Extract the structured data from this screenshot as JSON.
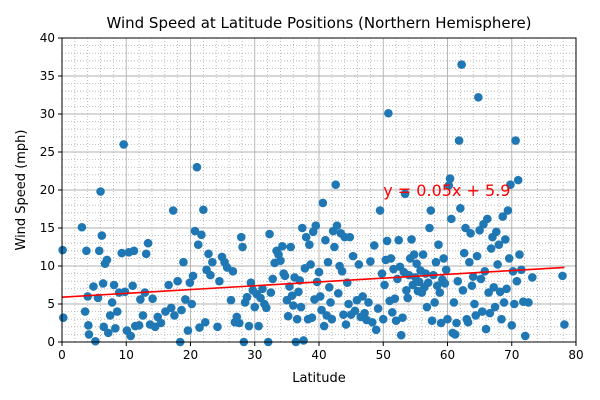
{
  "colors": {
    "point": "#1f77b4",
    "regression": "#ff0000",
    "major_grid": "#b0b0b0",
    "minor_grid": "#b0b0b0",
    "axis": "#000000"
  },
  "chart_data": {
    "type": "scatter",
    "title": "Wind Speed at Latitude Positions (Northern Hemisphere)",
    "xlabel": "Latitude",
    "ylabel": "Wind Speed (mph)",
    "xlim": [
      0,
      80
    ],
    "ylim": [
      0,
      40
    ],
    "xticks": [
      0,
      10,
      20,
      30,
      40,
      50,
      60,
      70,
      80
    ],
    "yticks": [
      0,
      5,
      10,
      15,
      20,
      25,
      30,
      35,
      40
    ],
    "grid": "major solid, minor dotted",
    "regression": {
      "slope": 0.05,
      "intercept": 5.9,
      "label": "y = 0.05x + 5.9",
      "x_range": [
        0,
        78.2
      ]
    },
    "points": [
      [
        0.1,
        12.1
      ],
      [
        0.2,
        3.2
      ],
      [
        3.1,
        15.1
      ],
      [
        3.8,
        12.0
      ],
      [
        4.1,
        2.2
      ],
      [
        4.0,
        6.0
      ],
      [
        3.6,
        4.0
      ],
      [
        4.2,
        1.0
      ],
      [
        4.9,
        7.3
      ],
      [
        5.2,
        0.1
      ],
      [
        5.6,
        5.8
      ],
      [
        5.8,
        12.0
      ],
      [
        6.0,
        19.8
      ],
      [
        6.2,
        14.0
      ],
      [
        6.4,
        7.7
      ],
      [
        6.5,
        2.0
      ],
      [
        6.7,
        10.3
      ],
      [
        7.0,
        10.8
      ],
      [
        7.2,
        1.2
      ],
      [
        7.5,
        3.5
      ],
      [
        7.8,
        5.2
      ],
      [
        8.1,
        7.5
      ],
      [
        8.3,
        1.8
      ],
      [
        8.6,
        4.0
      ],
      [
        8.9,
        6.5
      ],
      [
        9.3,
        11.7
      ],
      [
        9.6,
        26.0
      ],
      [
        9.8,
        6.6
      ],
      [
        10.1,
        1.5
      ],
      [
        10.4,
        11.8
      ],
      [
        10.7,
        0.8
      ],
      [
        11.0,
        7.4
      ],
      [
        11.2,
        12.0
      ],
      [
        11.4,
        2.1
      ],
      [
        12.0,
        2.2
      ],
      [
        12.2,
        5.6
      ],
      [
        12.6,
        3.5
      ],
      [
        12.9,
        6.5
      ],
      [
        13.1,
        11.6
      ],
      [
        13.4,
        13.0
      ],
      [
        13.7,
        2.3
      ],
      [
        14.1,
        5.7
      ],
      [
        14.5,
        2.0
      ],
      [
        14.9,
        3.3
      ],
      [
        15.4,
        2.5
      ],
      [
        16.1,
        4.0
      ],
      [
        16.6,
        7.5
      ],
      [
        17.0,
        4.5
      ],
      [
        17.3,
        17.3
      ],
      [
        17.5,
        3.5
      ],
      [
        18.0,
        8.0
      ],
      [
        18.4,
        0.0
      ],
      [
        18.6,
        4.2
      ],
      [
        18.9,
        10.5
      ],
      [
        19.2,
        5.6
      ],
      [
        19.6,
        1.5
      ],
      [
        19.9,
        7.8
      ],
      [
        20.2,
        5.0
      ],
      [
        20.4,
        8.7
      ],
      [
        20.7,
        14.6
      ],
      [
        21.0,
        23.0
      ],
      [
        21.2,
        12.8
      ],
      [
        21.4,
        1.9
      ],
      [
        21.7,
        14.1
      ],
      [
        22.0,
        17.4
      ],
      [
        22.3,
        2.6
      ],
      [
        22.5,
        9.5
      ],
      [
        22.8,
        11.6
      ],
      [
        23.1,
        8.8
      ],
      [
        23.4,
        10.5
      ],
      [
        24.2,
        2.0
      ],
      [
        24.5,
        8.0
      ],
      [
        24.9,
        11.2
      ],
      [
        25.3,
        10.5
      ],
      [
        25.7,
        9.8
      ],
      [
        26.3,
        5.5
      ],
      [
        26.6,
        9.3
      ],
      [
        26.9,
        2.6
      ],
      [
        27.2,
        3.3
      ],
      [
        27.6,
        2.5
      ],
      [
        27.9,
        13.8
      ],
      [
        28.1,
        12.5
      ],
      [
        28.3,
        0.0
      ],
      [
        28.5,
        5.2
      ],
      [
        28.8,
        5.9
      ],
      [
        29.1,
        2.1
      ],
      [
        29.4,
        7.8
      ],
      [
        29.7,
        6.8
      ],
      [
        30.0,
        4.6
      ],
      [
        30.3,
        6.3
      ],
      [
        30.6,
        2.1
      ],
      [
        30.9,
        5.8
      ],
      [
        31.2,
        7.0
      ],
      [
        31.5,
        5.0
      ],
      [
        31.8,
        4.5
      ],
      [
        32.1,
        0.0
      ],
      [
        32.3,
        14.2
      ],
      [
        32.5,
        6.5
      ],
      [
        32.8,
        8.3
      ],
      [
        33.1,
        10.4
      ],
      [
        33.4,
        12.0
      ],
      [
        33.7,
        11.5
      ],
      [
        34.0,
        10.7
      ],
      [
        34.3,
        12.6
      ],
      [
        34.5,
        9.0
      ],
      [
        34.7,
        8.7
      ],
      [
        35.0,
        5.5
      ],
      [
        35.2,
        3.4
      ],
      [
        35.4,
        7.3
      ],
      [
        35.6,
        12.5
      ],
      [
        35.8,
        6.1
      ],
      [
        36.0,
        4.8
      ],
      [
        36.2,
        8.5
      ],
      [
        36.4,
        0.0
      ],
      [
        36.6,
        3.0
      ],
      [
        36.8,
        6.6
      ],
      [
        37.0,
        8.1
      ],
      [
        37.2,
        4.6
      ],
      [
        37.4,
        15.0
      ],
      [
        37.6,
        0.2
      ],
      [
        37.8,
        9.7
      ],
      [
        38.0,
        13.8
      ],
      [
        38.3,
        3.0
      ],
      [
        38.5,
        12.8
      ],
      [
        38.7,
        10.2
      ],
      [
        38.9,
        3.2
      ],
      [
        39.1,
        14.5
      ],
      [
        39.3,
        5.6
      ],
      [
        39.5,
        15.3
      ],
      [
        39.7,
        7.9
      ],
      [
        40.0,
        9.2
      ],
      [
        40.2,
        6.0
      ],
      [
        40.4,
        4.2
      ],
      [
        40.6,
        18.3
      ],
      [
        40.8,
        2.1
      ],
      [
        41.0,
        13.4
      ],
      [
        41.2,
        3.5
      ],
      [
        41.4,
        10.5
      ],
      [
        41.6,
        7.2
      ],
      [
        41.8,
        5.2
      ],
      [
        42.0,
        3.0
      ],
      [
        42.2,
        14.6
      ],
      [
        42.4,
        12.5
      ],
      [
        42.6,
        20.7
      ],
      [
        42.8,
        15.3
      ],
      [
        43.0,
        6.4
      ],
      [
        43.2,
        10.0
      ],
      [
        43.4,
        14.3
      ],
      [
        43.6,
        9.3
      ],
      [
        43.8,
        3.6
      ],
      [
        44.0,
        13.8
      ],
      [
        44.2,
        2.3
      ],
      [
        44.4,
        7.8
      ],
      [
        44.6,
        5.0
      ],
      [
        44.8,
        13.8
      ],
      [
        45.0,
        3.6
      ],
      [
        45.3,
        11.3
      ],
      [
        45.6,
        4.1
      ],
      [
        45.9,
        5.5
      ],
      [
        46.2,
        10.2
      ],
      [
        46.5,
        3.3
      ],
      [
        46.8,
        6.0
      ],
      [
        47.1,
        3.8
      ],
      [
        47.4,
        2.9
      ],
      [
        47.7,
        5.2
      ],
      [
        48.0,
        10.6
      ],
      [
        48.3,
        2.6
      ],
      [
        48.6,
        12.7
      ],
      [
        48.9,
        1.6
      ],
      [
        49.2,
        4.4
      ],
      [
        49.5,
        17.3
      ],
      [
        49.8,
        9.0
      ],
      [
        50.0,
        3.0
      ],
      [
        50.2,
        7.5
      ],
      [
        50.4,
        10.8
      ],
      [
        50.6,
        13.3
      ],
      [
        50.8,
        30.1
      ],
      [
        51.0,
        5.4
      ],
      [
        51.2,
        11.0
      ],
      [
        51.4,
        3.9
      ],
      [
        51.6,
        9.6
      ],
      [
        51.8,
        5.7
      ],
      [
        52.0,
        2.8
      ],
      [
        52.2,
        8.3
      ],
      [
        52.4,
        13.4
      ],
      [
        52.6,
        9.9
      ],
      [
        52.8,
        0.9
      ],
      [
        53.0,
        3.2
      ],
      [
        53.2,
        9.2
      ],
      [
        53.4,
        19.5
      ],
      [
        53.6,
        6.8
      ],
      [
        53.8,
        5.8
      ],
      [
        54.0,
        8.8
      ],
      [
        54.2,
        11.0
      ],
      [
        54.4,
        13.5
      ],
      [
        54.6,
        7.5
      ],
      [
        54.8,
        11.5
      ],
      [
        55.0,
        8.5
      ],
      [
        55.2,
        10.3
      ],
      [
        55.4,
        6.7
      ],
      [
        55.6,
        7.9
      ],
      [
        55.8,
        9.4
      ],
      [
        56.0,
        6.5
      ],
      [
        56.2,
        11.5
      ],
      [
        56.4,
        7.2
      ],
      [
        56.6,
        9.0
      ],
      [
        56.8,
        4.6
      ],
      [
        57.0,
        7.8
      ],
      [
        57.2,
        15.0
      ],
      [
        57.4,
        17.3
      ],
      [
        57.6,
        2.8
      ],
      [
        57.8,
        8.8
      ],
      [
        58.0,
        5.2
      ],
      [
        58.2,
        10.5
      ],
      [
        58.4,
        7.4
      ],
      [
        58.6,
        12.8
      ],
      [
        58.8,
        6.5
      ],
      [
        59.0,
        2.5
      ],
      [
        59.2,
        8.2
      ],
      [
        59.4,
        11.0
      ],
      [
        59.6,
        7.7
      ],
      [
        59.8,
        9.5
      ],
      [
        60.0,
        3.0
      ],
      [
        60.2,
        20.6
      ],
      [
        60.4,
        21.5
      ],
      [
        60.6,
        16.2
      ],
      [
        60.8,
        1.2
      ],
      [
        61.0,
        5.2
      ],
      [
        61.2,
        1.0
      ],
      [
        61.4,
        2.5
      ],
      [
        61.6,
        8.0
      ],
      [
        61.8,
        26.5
      ],
      [
        62.0,
        17.6
      ],
      [
        62.2,
        36.5
      ],
      [
        62.4,
        6.8
      ],
      [
        62.6,
        11.7
      ],
      [
        62.8,
        15.0
      ],
      [
        63.0,
        3.0
      ],
      [
        63.2,
        2.6
      ],
      [
        63.4,
        10.5
      ],
      [
        63.6,
        14.3
      ],
      [
        63.8,
        7.4
      ],
      [
        64.0,
        8.6
      ],
      [
        64.2,
        5.0
      ],
      [
        64.4,
        3.5
      ],
      [
        64.6,
        11.3
      ],
      [
        64.8,
        32.2
      ],
      [
        65.0,
        14.7
      ],
      [
        65.2,
        8.3
      ],
      [
        65.4,
        4.0
      ],
      [
        65.6,
        15.5
      ],
      [
        65.8,
        9.3
      ],
      [
        66.0,
        1.7
      ],
      [
        66.2,
        16.2
      ],
      [
        66.4,
        6.5
      ],
      [
        66.6,
        3.8
      ],
      [
        66.8,
        12.3
      ],
      [
        67.0,
        13.8
      ],
      [
        67.2,
        7.2
      ],
      [
        67.4,
        4.6
      ],
      [
        67.6,
        14.5
      ],
      [
        67.8,
        10.2
      ],
      [
        68.0,
        12.8
      ],
      [
        68.2,
        6.6
      ],
      [
        68.4,
        3.0
      ],
      [
        68.6,
        16.5
      ],
      [
        68.8,
        5.2
      ],
      [
        69.0,
        13.5
      ],
      [
        69.2,
        7.0
      ],
      [
        69.4,
        17.3
      ],
      [
        69.6,
        11.0
      ],
      [
        69.8,
        20.7
      ],
      [
        70.0,
        2.2
      ],
      [
        70.2,
        9.3
      ],
      [
        70.4,
        5.0
      ],
      [
        70.6,
        26.5
      ],
      [
        70.8,
        8.0
      ],
      [
        71.0,
        21.3
      ],
      [
        71.2,
        11.5
      ],
      [
        71.5,
        9.5
      ],
      [
        71.8,
        5.3
      ],
      [
        72.1,
        0.8
      ],
      [
        72.6,
        5.2
      ],
      [
        73.2,
        8.5
      ],
      [
        77.9,
        8.7
      ],
      [
        78.2,
        2.3
      ]
    ]
  }
}
